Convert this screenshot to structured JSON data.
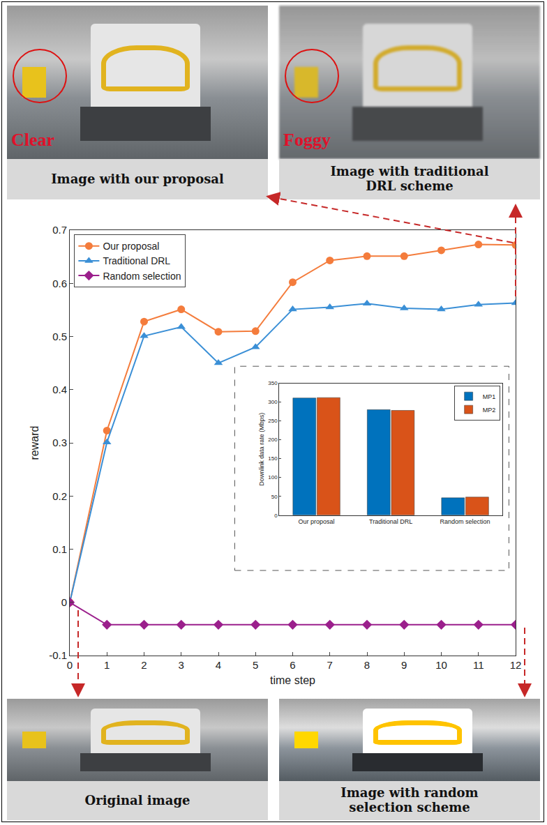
{
  "chart_data": [
    {
      "type": "line",
      "xlabel": "time step",
      "ylabel": "reward",
      "x": [
        0,
        1,
        2,
        3,
        4,
        5,
        6,
        7,
        8,
        9,
        10,
        11,
        12
      ],
      "xlim": [
        0,
        12
      ],
      "xticks": [
        0,
        1,
        2,
        3,
        4,
        5,
        6,
        7,
        8,
        9,
        10,
        11,
        12
      ],
      "ylim": [
        -0.1,
        0.7
      ],
      "yticks": [
        -0.1,
        0,
        0.1,
        0.2,
        0.3,
        0.4,
        0.5,
        0.6,
        0.7
      ],
      "grid": false,
      "legend": "top left",
      "series": [
        {
          "name": "Our proposal",
          "color": "#f47c3c",
          "marker": "circle",
          "values": [
            0,
            0.323,
            0.528,
            0.551,
            0.509,
            0.51,
            0.602,
            0.643,
            0.651,
            0.651,
            0.662,
            0.673,
            0.672
          ]
        },
        {
          "name": "Traditional DRL",
          "color": "#3a8fd6",
          "marker": "triangle",
          "values": [
            0,
            0.301,
            0.501,
            0.518,
            0.45,
            0.48,
            0.551,
            0.555,
            0.562,
            0.553,
            0.551,
            0.56,
            0.563
          ]
        },
        {
          "name": "Random selection",
          "color": "#9b1f8c",
          "marker": "diamond",
          "values": [
            0,
            -0.042,
            -0.042,
            -0.042,
            -0.042,
            -0.042,
            -0.042,
            -0.042,
            -0.042,
            -0.042,
            -0.042,
            -0.042,
            -0.042
          ]
        }
      ]
    },
    {
      "type": "bar",
      "ylabel": "Downlink data rate (Mbps)",
      "categories": [
        "Our proposal",
        "Traditional DRL",
        "Random selection"
      ],
      "ylim": [
        0,
        350
      ],
      "yticks": [
        0,
        50,
        100,
        150,
        200,
        250,
        300,
        350
      ],
      "grid": false,
      "legend": "top right",
      "series": [
        {
          "name": "MP1",
          "color": "#0072bd",
          "values": [
            311,
            280,
            46
          ]
        },
        {
          "name": "MP2",
          "color": "#d95319",
          "values": [
            312,
            278,
            48
          ]
        }
      ]
    }
  ],
  "images": [
    {
      "caption": "Image with our proposal",
      "tag": "Clear"
    },
    {
      "caption": "Image with traditional DRL scheme",
      "tag": "Foggy"
    },
    {
      "caption": "Original image"
    },
    {
      "caption": "Image with random selection scheme"
    }
  ]
}
